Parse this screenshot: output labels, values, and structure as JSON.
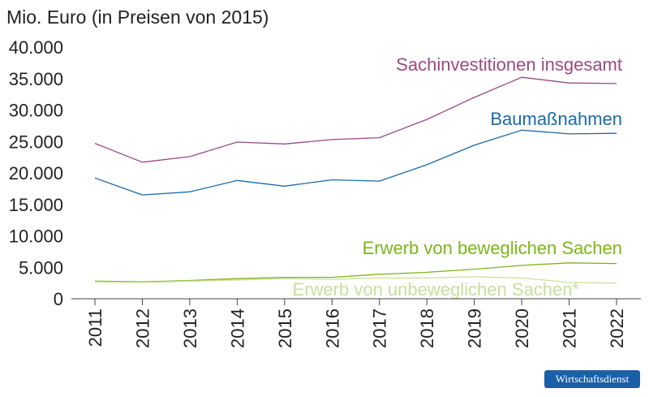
{
  "chart_data": {
    "type": "line",
    "ylabel": "Mio. Euro (in Preisen von 2015)",
    "ylim": [
      0,
      40000
    ],
    "yticks": [
      "0",
      "5.000",
      "10.000",
      "15.000",
      "20.000",
      "25.000",
      "30.000",
      "35.000",
      "40.000"
    ],
    "categories": [
      "2011",
      "2012",
      "2013",
      "2014",
      "2015",
      "2016",
      "2017",
      "2018",
      "2019",
      "2020",
      "2021",
      "2022"
    ],
    "grid": false,
    "series": [
      {
        "name": "Sachinvestitionen insgesamt",
        "color": "#9a4a7f",
        "values": [
          24700,
          21700,
          22600,
          24900,
          24600,
          25300,
          25600,
          28500,
          32000,
          35200,
          34300,
          34200
        ]
      },
      {
        "name": "Baumaßnahmen",
        "color": "#1a6aa8",
        "values": [
          19200,
          16500,
          17000,
          18800,
          17900,
          18900,
          18700,
          21300,
          24400,
          26800,
          26200,
          26300
        ]
      },
      {
        "name": "Erwerb von beweglichen Sachen",
        "color": "#7cb518",
        "values": [
          2800,
          2700,
          2900,
          3200,
          3400,
          3400,
          3900,
          4200,
          4700,
          5300,
          5700,
          5600
        ]
      },
      {
        "name": "Erwerb von unbeweglichen Sachen*",
        "color": "#c8df98",
        "values": [
          2700,
          2600,
          2800,
          3000,
          3200,
          3100,
          3300,
          3300,
          3500,
          3300,
          2600,
          2500
        ]
      }
    ]
  },
  "brand": "Wirtschaftsdienst"
}
